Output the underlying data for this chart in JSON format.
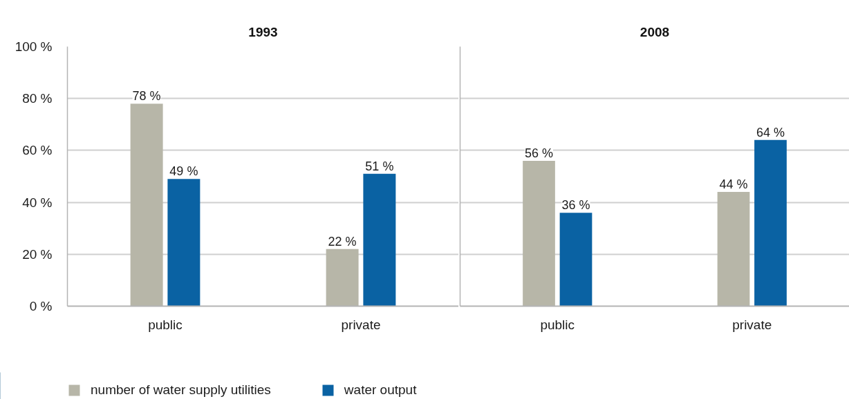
{
  "chart_data": [
    {
      "type": "bar",
      "title": "1993",
      "categories": [
        "public",
        "private"
      ],
      "series": [
        {
          "name": "number of water supply utilities",
          "color": "#b7b6a8",
          "values": [
            78,
            22
          ],
          "value_labels": [
            "78 %",
            "22 %"
          ]
        },
        {
          "name": "water output",
          "color": "#0a62a3",
          "values": [
            49,
            51
          ],
          "value_labels": [
            "49 %",
            "51 %"
          ]
        }
      ],
      "ylim": [
        0,
        100
      ],
      "yticks": [
        {
          "value": 0,
          "label": "0 %"
        },
        {
          "value": 20,
          "label": "20 %"
        },
        {
          "value": 40,
          "label": "40 %"
        },
        {
          "value": 60,
          "label": "60 %"
        },
        {
          "value": 80,
          "label": "80 %"
        },
        {
          "value": 100,
          "label": "100 %"
        }
      ],
      "grid": "y",
      "legend": "bottom"
    },
    {
      "type": "bar",
      "title": "2008",
      "categories": [
        "public",
        "private"
      ],
      "series": [
        {
          "color": "#b7b6a8",
          "values": [
            56,
            44
          ],
          "value_labels": [
            "56 %",
            "44 %"
          ]
        },
        {
          "color": "#0a62a3",
          "values": [
            36,
            64
          ],
          "value_labels": [
            "36 %",
            "64 %"
          ]
        }
      ],
      "ylim": [
        0,
        100
      ],
      "yticks": [
        0,
        20,
        40,
        60,
        80,
        100
      ],
      "grid": "y",
      "tick_labels": "x"
    }
  ]
}
